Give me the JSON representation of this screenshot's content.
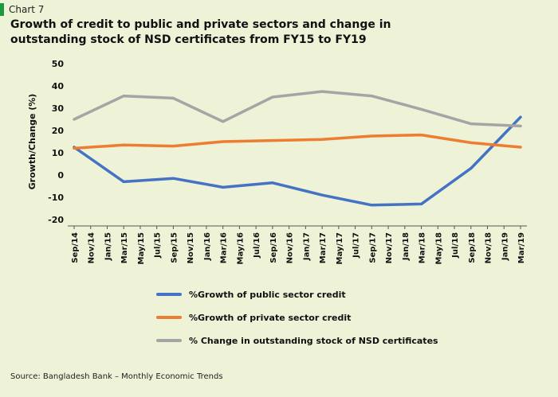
{
  "chart_number": "Chart 7",
  "source": "Source: Bangladesh Bank – Monthly Economic Trends",
  "chart_data": {
    "type": "line",
    "title": "Growth of credit to public and private sectors and change in outstanding stock of NSD certificates from FY15 to FY19",
    "xlabel": "",
    "ylabel": "Growth/Change (%)",
    "ylim": [
      -20,
      50
    ],
    "yticks": [
      "50",
      "40",
      "30",
      "20",
      "10",
      "0",
      "-10",
      "-20"
    ],
    "grid": false,
    "legend_position": "bottom",
    "categories": [
      "Sep/14",
      "Nov/14",
      "Jan/15",
      "Mar/15",
      "May/15",
      "Jul/15",
      "Sep/15",
      "Nov/15",
      "Jan/16",
      "Mar/16",
      "May/16",
      "Jul/16",
      "Sep/16",
      "Nov/16",
      "Jan/17",
      "Mar/17",
      "May/17",
      "Jul/17",
      "Sep/17",
      "Nov/17",
      "Jan/18",
      "Mar/18",
      "May/18",
      "Jul/18",
      "Sep/18",
      "Nov/18",
      "Jan/19",
      "Mar/19"
    ],
    "series": [
      {
        "name": "%Growth of public sector credit",
        "color": "#4472c4",
        "points": [
          [
            "Sep/14",
            12.5
          ],
          [
            "Mar/15",
            -3
          ],
          [
            "Sep/15",
            -1.5
          ],
          [
            "Mar/16",
            -5.5
          ],
          [
            "Sep/16",
            -3.5
          ],
          [
            "Mar/17",
            -9
          ],
          [
            "Sep/17",
            -13.5
          ],
          [
            "Mar/18",
            -13
          ],
          [
            "Sep/18",
            3
          ],
          [
            "Mar/19",
            26
          ]
        ]
      },
      {
        "name": "%Growth of private sector credit",
        "color": "#ed7d31",
        "points": [
          [
            "Sep/14",
            12
          ],
          [
            "Mar/15",
            13.5
          ],
          [
            "Sep/15",
            13
          ],
          [
            "Mar/16",
            15
          ],
          [
            "Sep/16",
            15.5
          ],
          [
            "Mar/17",
            16
          ],
          [
            "Sep/17",
            17.5
          ],
          [
            "Mar/18",
            18
          ],
          [
            "Sep/18",
            14.5
          ],
          [
            "Mar/19",
            12.5
          ]
        ]
      },
      {
        "name": "% Change in outstanding stock of NSD certificates",
        "color": "#a5a5a5",
        "points": [
          [
            "Sep/14",
            25
          ],
          [
            "Mar/15",
            35.5
          ],
          [
            "Sep/15",
            34.5
          ],
          [
            "Mar/16",
            24
          ],
          [
            "Sep/16",
            35
          ],
          [
            "Mar/17",
            37.5
          ],
          [
            "Sep/17",
            35.5
          ],
          [
            "Mar/18",
            29.5
          ],
          [
            "Sep/18",
            23
          ],
          [
            "Mar/19",
            22
          ]
        ]
      }
    ]
  }
}
